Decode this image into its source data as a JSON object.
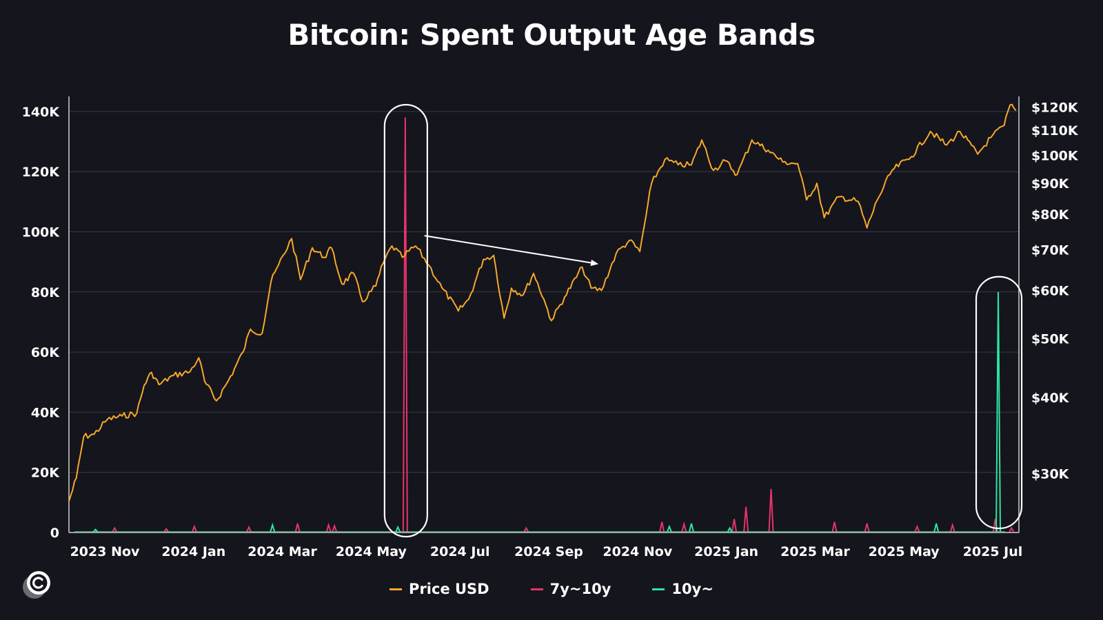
{
  "chart_data": {
    "type": "line",
    "title": "Bitcoin: Spent Output Age Bands",
    "x_tick_labels": [
      "2023 Nov",
      "2024 Jan",
      "2024 Mar",
      "2024 May",
      "2024 Jul",
      "2024 Sep",
      "2024 Nov",
      "2025 Jan",
      "2025 Mar",
      "2025 May",
      "2025 Jul"
    ],
    "x_range": [
      "2023-10-15",
      "2025-07-20"
    ],
    "y_left": {
      "ticks": [
        0,
        20000,
        40000,
        60000,
        80000,
        100000,
        120000,
        140000
      ],
      "tick_labels": [
        "0",
        "20K",
        "40K",
        "60K",
        "80K",
        "100K",
        "120K",
        "140K"
      ],
      "range": [
        0,
        145000
      ]
    },
    "y_right": {
      "scale": "log",
      "ticks": [
        30000,
        40000,
        50000,
        60000,
        70000,
        80000,
        90000,
        100000,
        110000,
        120000
      ],
      "tick_labels": [
        "$30K",
        "$40K",
        "$50K",
        "$60K",
        "$70K",
        "$80K",
        "$90K",
        "$100K",
        "$110K",
        "$120K"
      ],
      "range": [
        24000,
        125000
      ]
    },
    "grid": true,
    "legend_position": "bottom",
    "series": [
      {
        "name": "Price USD",
        "axis": "right",
        "color": "#f7a92a",
        "points": [
          [
            "2023-10-15",
            27000
          ],
          [
            "2023-10-20",
            29500
          ],
          [
            "2023-10-25",
            34500
          ],
          [
            "2023-11-01",
            34800
          ],
          [
            "2023-11-10",
            36800
          ],
          [
            "2023-11-20",
            37300
          ],
          [
            "2023-11-30",
            37700
          ],
          [
            "2023-12-05",
            41900
          ],
          [
            "2023-12-10",
            44000
          ],
          [
            "2023-12-15",
            42000
          ],
          [
            "2023-12-25",
            43500
          ],
          [
            "2024-01-05",
            44100
          ],
          [
            "2024-01-11",
            46500
          ],
          [
            "2024-01-15",
            42500
          ],
          [
            "2024-01-23",
            39500
          ],
          [
            "2024-01-31",
            42600
          ],
          [
            "2024-02-10",
            47500
          ],
          [
            "2024-02-15",
            51800
          ],
          [
            "2024-02-23",
            51000
          ],
          [
            "2024-02-29",
            62000
          ],
          [
            "2024-03-05",
            66000
          ],
          [
            "2024-03-14",
            73000
          ],
          [
            "2024-03-20",
            62500
          ],
          [
            "2024-03-28",
            70500
          ],
          [
            "2024-04-05",
            68000
          ],
          [
            "2024-04-10",
            70500
          ],
          [
            "2024-04-17",
            61500
          ],
          [
            "2024-04-25",
            64000
          ],
          [
            "2024-05-01",
            57500
          ],
          [
            "2024-05-10",
            61000
          ],
          [
            "2024-05-15",
            66500
          ],
          [
            "2024-05-21",
            71000
          ],
          [
            "2024-05-28",
            68000
          ],
          [
            "2024-06-06",
            71000
          ],
          [
            "2024-06-15",
            66000
          ],
          [
            "2024-06-24",
            60500
          ],
          [
            "2024-07-05",
            55500
          ],
          [
            "2024-07-12",
            58000
          ],
          [
            "2024-07-22",
            67500
          ],
          [
            "2024-07-29",
            68500
          ],
          [
            "2024-08-05",
            54000
          ],
          [
            "2024-08-10",
            60500
          ],
          [
            "2024-08-18",
            59000
          ],
          [
            "2024-08-25",
            64000
          ],
          [
            "2024-09-01",
            58000
          ],
          [
            "2024-09-06",
            53500
          ],
          [
            "2024-09-15",
            58500
          ],
          [
            "2024-09-27",
            65500
          ],
          [
            "2024-10-03",
            60500
          ],
          [
            "2024-10-10",
            60000
          ],
          [
            "2024-10-20",
            69000
          ],
          [
            "2024-10-29",
            72500
          ],
          [
            "2024-11-05",
            69500
          ],
          [
            "2024-11-08",
            76500
          ],
          [
            "2024-11-13",
            90000
          ],
          [
            "2024-11-22",
            98500
          ],
          [
            "2024-12-01",
            96500
          ],
          [
            "2024-12-10",
            96500
          ],
          [
            "2024-12-17",
            106000
          ],
          [
            "2024-12-25",
            94500
          ],
          [
            "2025-01-02",
            98000
          ],
          [
            "2025-01-10",
            93000
          ],
          [
            "2025-01-20",
            106000
          ],
          [
            "2025-01-31",
            102000
          ],
          [
            "2025-02-10",
            97500
          ],
          [
            "2025-02-20",
            97000
          ],
          [
            "2025-02-26",
            84500
          ],
          [
            "2025-03-05",
            90000
          ],
          [
            "2025-03-10",
            79000
          ],
          [
            "2025-03-20",
            85500
          ],
          [
            "2025-04-02",
            84000
          ],
          [
            "2025-04-08",
            76000
          ],
          [
            "2025-04-15",
            84500
          ],
          [
            "2025-04-25",
            94500
          ],
          [
            "2025-05-08",
            99500
          ],
          [
            "2025-05-21",
            109500
          ],
          [
            "2025-06-01",
            104000
          ],
          [
            "2025-06-10",
            109500
          ],
          [
            "2025-06-22",
            100500
          ],
          [
            "2025-07-01",
            107000
          ],
          [
            "2025-07-10",
            112000
          ],
          [
            "2025-07-14",
            121000
          ],
          [
            "2025-07-18",
            118500
          ]
        ]
      },
      {
        "name": "7y~10y",
        "axis": "left",
        "color": "#e8336b",
        "points": [
          [
            "2023-11-15",
            1500
          ],
          [
            "2023-12-20",
            1200
          ],
          [
            "2024-01-08",
            2000
          ],
          [
            "2024-02-14",
            1800
          ],
          [
            "2024-03-18",
            3000
          ],
          [
            "2024-04-08",
            2500
          ],
          [
            "2024-04-12",
            2200
          ],
          [
            "2024-05-30",
            138000
          ],
          [
            "2024-08-20",
            1500
          ],
          [
            "2024-11-20",
            3500
          ],
          [
            "2024-12-05",
            2800
          ],
          [
            "2025-01-08",
            4500
          ],
          [
            "2025-01-16",
            8500
          ],
          [
            "2025-02-02",
            14500
          ],
          [
            "2025-03-17",
            3500
          ],
          [
            "2025-04-08",
            3000
          ],
          [
            "2025-05-12",
            2000
          ],
          [
            "2025-06-05",
            2500
          ],
          [
            "2025-07-04",
            4500
          ],
          [
            "2025-07-15",
            1500
          ]
        ]
      },
      {
        "name": "10y~",
        "axis": "left",
        "color": "#2ee6a1",
        "points": [
          [
            "2023-11-02",
            1000
          ],
          [
            "2024-03-01",
            2500
          ],
          [
            "2024-05-25",
            1800
          ],
          [
            "2024-11-25",
            2000
          ],
          [
            "2024-12-10",
            3000
          ],
          [
            "2025-01-05",
            1500
          ],
          [
            "2025-05-25",
            3000
          ],
          [
            "2025-07-06",
            80000
          ]
        ]
      }
    ],
    "annotations": [
      "highlight around 7y~10y spike (2024 May)",
      "highlight around 10y~ spike (2025 Jul)",
      "arrow from 2024 Jun to 2024 Oct"
    ]
  },
  "legend": {
    "price_label": "Price USD",
    "band1_label": "7y~10y",
    "band2_label": "10y~"
  },
  "colors": {
    "background": "#15151d",
    "price": "#f7a92a",
    "band1": "#e8336b",
    "band2": "#2ee6a1",
    "grid": "#3a3a44"
  },
  "logo_icon": "c-logo-icon"
}
